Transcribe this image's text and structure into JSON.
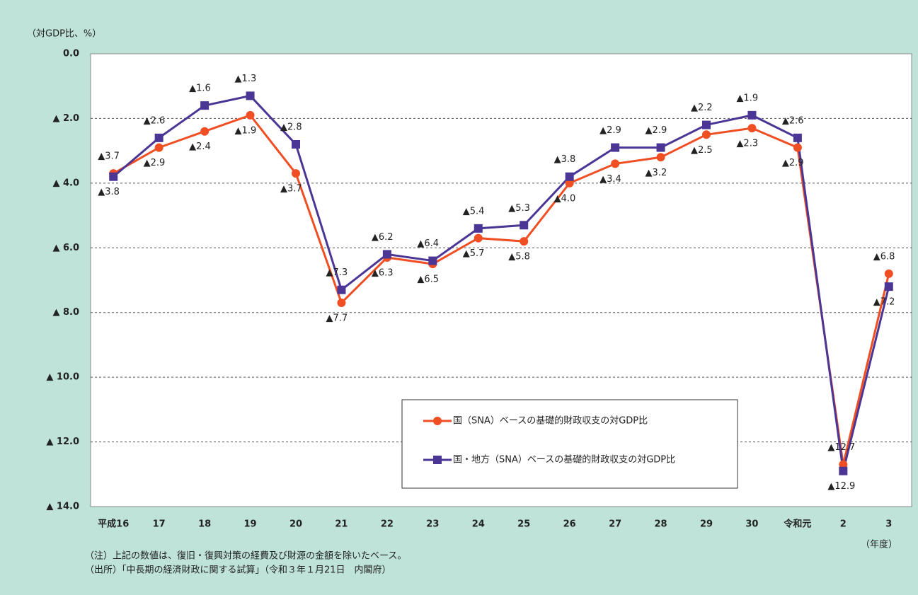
{
  "chart_data": {
    "type": "line",
    "y_unit_label": "（対GDP比、%）",
    "x_unit_label": "（年度）",
    "notes": [
      "（注）上記の数値は、復旧・復興対策の経費及び財源の金額を除いたベース。",
      "（出所）「中長期の経済財政に関する試算」（令和３年１月21日　内閣府）"
    ],
    "categories": [
      "平成16",
      "17",
      "18",
      "19",
      "20",
      "21",
      "22",
      "23",
      "24",
      "25",
      "26",
      "27",
      "28",
      "29",
      "30",
      "令和元",
      "2",
      "3"
    ],
    "series": [
      {
        "name": "国（SNA）ベースの基礎的財政収支の対GDP比",
        "color": "#f04e23",
        "marker": "circle",
        "values": [
          -3.7,
          -2.9,
          -2.4,
          -1.9,
          -3.7,
          -7.7,
          -6.3,
          -6.5,
          -5.7,
          -5.8,
          -4.0,
          -3.4,
          -3.2,
          -2.5,
          -2.3,
          -2.9,
          -12.7,
          -6.8
        ],
        "value_labels": [
          "▲3.7",
          "▲2.9",
          "▲2.4",
          "▲1.9",
          "▲3.7",
          "▲7.7",
          "▲6.3",
          "▲6.5",
          "▲5.7",
          "▲5.8",
          "▲4.0",
          "▲3.4",
          "▲3.2",
          "▲2.5",
          "▲2.3",
          "▲2.9",
          "▲12.7",
          "▲6.8"
        ]
      },
      {
        "name": "国・地方（SNA）ベースの基礎的財政収支の対GDP比",
        "color": "#4b3595",
        "marker": "square",
        "values": [
          -3.8,
          -2.6,
          -1.6,
          -1.3,
          -2.8,
          -7.3,
          -6.2,
          -6.4,
          -5.4,
          -5.3,
          -3.8,
          -2.9,
          -2.9,
          -2.2,
          -1.9,
          -2.6,
          -12.9,
          -7.2
        ],
        "value_labels": [
          "▲3.8",
          "▲2.6",
          "▲1.6",
          "▲1.3",
          "▲2.8",
          "▲7.3",
          "▲6.2",
          "▲6.4",
          "▲5.4",
          "▲5.3",
          "▲3.8",
          "▲2.9",
          "▲2.9",
          "▲2.2",
          "▲1.9",
          "▲2.6",
          "▲12.9",
          "▲7.2"
        ]
      }
    ],
    "ylim": [
      -14,
      0
    ],
    "yticks": [
      {
        "value": 0,
        "label": "0.0"
      },
      {
        "value": -2,
        "label": "▲ 2.0"
      },
      {
        "value": -4,
        "label": "▲ 4.0"
      },
      {
        "value": -6,
        "label": "▲ 6.0"
      },
      {
        "value": -8,
        "label": "▲ 8.0"
      },
      {
        "value": -10,
        "label": "▲ 10.0"
      },
      {
        "value": -12,
        "label": "▲ 12.0"
      },
      {
        "value": -14,
        "label": "▲ 14.0"
      }
    ],
    "grid": true,
    "legend_position": "lower right"
  }
}
